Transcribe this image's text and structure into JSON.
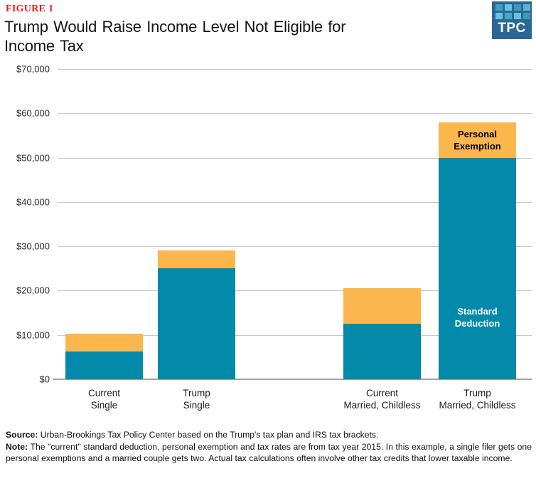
{
  "header": {
    "figure_label": "FIGURE 1",
    "title_lines": [
      "Trump Would Raise Income Level Not Eligible for",
      "Income Tax"
    ]
  },
  "logo": {
    "text": "TPC",
    "background": "#2b6795",
    "squares": [
      "#43a0bc",
      "#65c3da",
      "#3f98b4",
      "#58b6cd",
      "#65c3da",
      "#4aa8c2",
      "#65c3da",
      "#3f98b4"
    ]
  },
  "colors": {
    "standard_deduction": "#0389a9",
    "personal_exemption": "#fbb64d",
    "figure_label_red": "#ea1c1c",
    "gridline": "#c9c9c9",
    "axis": "#a3a3a3"
  },
  "chart_data": {
    "type": "bar",
    "stacked": true,
    "grid": true,
    "title": "Trump Would Raise Income Level Not Eligible for Income Tax",
    "xlabel": "",
    "ylabel": "",
    "ylim": [
      0,
      70000
    ],
    "ytick_step": 10000,
    "ytick_labels": [
      "$0",
      "$10,000",
      "$20,000",
      "$30,000",
      "$40,000",
      "$50,000",
      "$60,000",
      "$70,000"
    ],
    "categories": [
      [
        "Current",
        "Single"
      ],
      [
        "Trump",
        "Single"
      ],
      [
        "Current",
        "Married, Childless"
      ],
      [
        "Trump",
        "Married, Childless"
      ]
    ],
    "series": [
      {
        "name": "Standard Deduction",
        "color": "#0389a9",
        "values": [
          6300,
          25000,
          12600,
          50000
        ]
      },
      {
        "name": "Personal Exemption",
        "color": "#fbb64d",
        "values": [
          4000,
          4000,
          8000,
          8000
        ]
      }
    ],
    "totals": [
      10300,
      29000,
      20600,
      58000
    ],
    "annotations": [
      {
        "text": "Personal Exemption",
        "bar": 3,
        "segment": "Personal Exemption",
        "text_color": "#000000"
      },
      {
        "text": "Standard Deduction",
        "bar": 3,
        "segment": "Standard Deduction",
        "text_color": "#ffffff"
      }
    ]
  },
  "footer": {
    "source_label": "Source:",
    "source_text": " Urban-Brookings Tax Policy Center based on the Trump's tax plan and IRS tax brackets.",
    "note_label": "Note:",
    "note_text": " The \"current\" standard deduction, personal exemption and tax rates are from tax year 2015. In this example, a single filer gets one personal exemptions and a married couple gets two. Actual tax calculations often involve other tax credits that lower taxable income."
  }
}
